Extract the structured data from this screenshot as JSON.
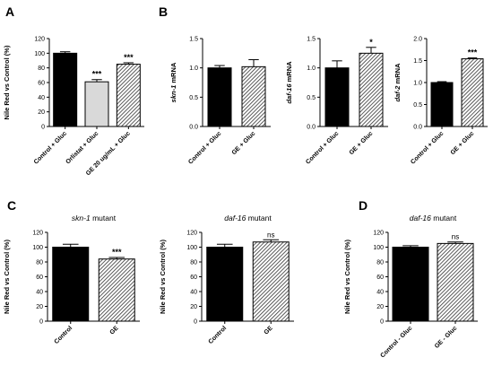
{
  "chart_data": [
    {
      "type": "bar",
      "panel": "A",
      "title": "",
      "xlabel": "",
      "ylabel": "Nile Red vs Control (%)",
      "ylim": [
        0,
        120
      ],
      "yticks": [
        "0",
        "20",
        "40",
        "60",
        "80",
        "100",
        "120"
      ],
      "categories": [
        "Control + Gluc",
        "Orlistat + Gluc",
        "GE 20 ug/mL + Gluc"
      ],
      "values": [
        100,
        61,
        85
      ],
      "errors": [
        2,
        3,
        2
      ],
      "significance": [
        "",
        "***",
        "***"
      ],
      "bar_fills": [
        "solid-black",
        "light-grey",
        "hatched"
      ]
    },
    {
      "type": "bar",
      "panel": "B",
      "title": "",
      "xlabel": "",
      "ylabel": "skn-1 mRNA",
      "ylabel_gene": "skn-1",
      "ylabel_rest": " mRNA",
      "ylim": [
        0,
        1.5
      ],
      "yticks": [
        "0.0",
        "0.5",
        "1.0",
        "1.5"
      ],
      "categories": [
        "Control + Gluc",
        "GE + Gluc"
      ],
      "values": [
        1.0,
        1.02
      ],
      "errors": [
        0.04,
        0.12
      ],
      "significance": [
        "",
        ""
      ],
      "bar_fills": [
        "solid-black",
        "hatched"
      ]
    },
    {
      "type": "bar",
      "panel": "",
      "title": "",
      "xlabel": "",
      "ylabel": "daf-16 mRNA",
      "ylabel_gene": "daf-16",
      "ylabel_rest": " mRNA",
      "ylim": [
        0,
        1.5
      ],
      "yticks": [
        "0.0",
        "0.5",
        "1.0",
        "1.5"
      ],
      "categories": [
        "Control + Gluc",
        "GE + Gluc"
      ],
      "values": [
        1.0,
        1.25
      ],
      "errors": [
        0.12,
        0.1
      ],
      "significance": [
        "",
        "*"
      ],
      "bar_fills": [
        "solid-black",
        "hatched"
      ]
    },
    {
      "type": "bar",
      "panel": "",
      "title": "",
      "xlabel": "",
      "ylabel": "daf-2 mRNA",
      "ylabel_gene": "daf-2",
      "ylabel_rest": " mRNA",
      "ylim": [
        0,
        2.0
      ],
      "yticks": [
        "0.0",
        "0.5",
        "1.0",
        "1.5",
        "2.0"
      ],
      "categories": [
        "Control + Gluc",
        "GE + Gluc"
      ],
      "values": [
        1.0,
        1.54
      ],
      "errors": [
        0.02,
        0.02
      ],
      "significance": [
        "",
        "***"
      ],
      "bar_fills": [
        "solid-black",
        "hatched"
      ]
    },
    {
      "type": "bar",
      "panel": "C",
      "title": "skn-1 mutant",
      "title_gene": "skn-1",
      "title_rest": " mutant",
      "xlabel": "",
      "ylabel": "Nile Red vs Control (%)",
      "ylim": [
        0,
        120
      ],
      "yticks": [
        "0",
        "20",
        "40",
        "60",
        "80",
        "100",
        "120"
      ],
      "categories": [
        "Control",
        "GE"
      ],
      "values": [
        100,
        84
      ],
      "errors": [
        4,
        2
      ],
      "significance": [
        "",
        "***"
      ],
      "bar_fills": [
        "solid-black",
        "hatched"
      ]
    },
    {
      "type": "bar",
      "panel": "",
      "title": "daf-16 mutant",
      "title_gene": "daf-16",
      "title_rest": " mutant",
      "xlabel": "",
      "ylabel": "Nile Red vs Control (%)",
      "ylim": [
        0,
        120
      ],
      "yticks": [
        "0",
        "20",
        "40",
        "60",
        "80",
        "100",
        "120"
      ],
      "categories": [
        "Control",
        "GE"
      ],
      "values": [
        100,
        107
      ],
      "errors": [
        4,
        3
      ],
      "significance": [
        "",
        "ns"
      ],
      "bar_fills": [
        "solid-black",
        "hatched"
      ]
    },
    {
      "type": "bar",
      "panel": "D",
      "title": "daf-16 mutant",
      "title_gene": "daf-16",
      "title_rest": " mutant",
      "xlabel": "",
      "ylabel": "Nile Red vs Control (%)",
      "ylim": [
        0,
        120
      ],
      "yticks": [
        "0",
        "20",
        "40",
        "60",
        "80",
        "100",
        "120"
      ],
      "categories": [
        "Control - Gluc",
        "GE - Gluc"
      ],
      "values": [
        100,
        105
      ],
      "errors": [
        2,
        2
      ],
      "significance": [
        "",
        "ns"
      ],
      "bar_fills": [
        "solid-black",
        "hatched"
      ]
    }
  ]
}
